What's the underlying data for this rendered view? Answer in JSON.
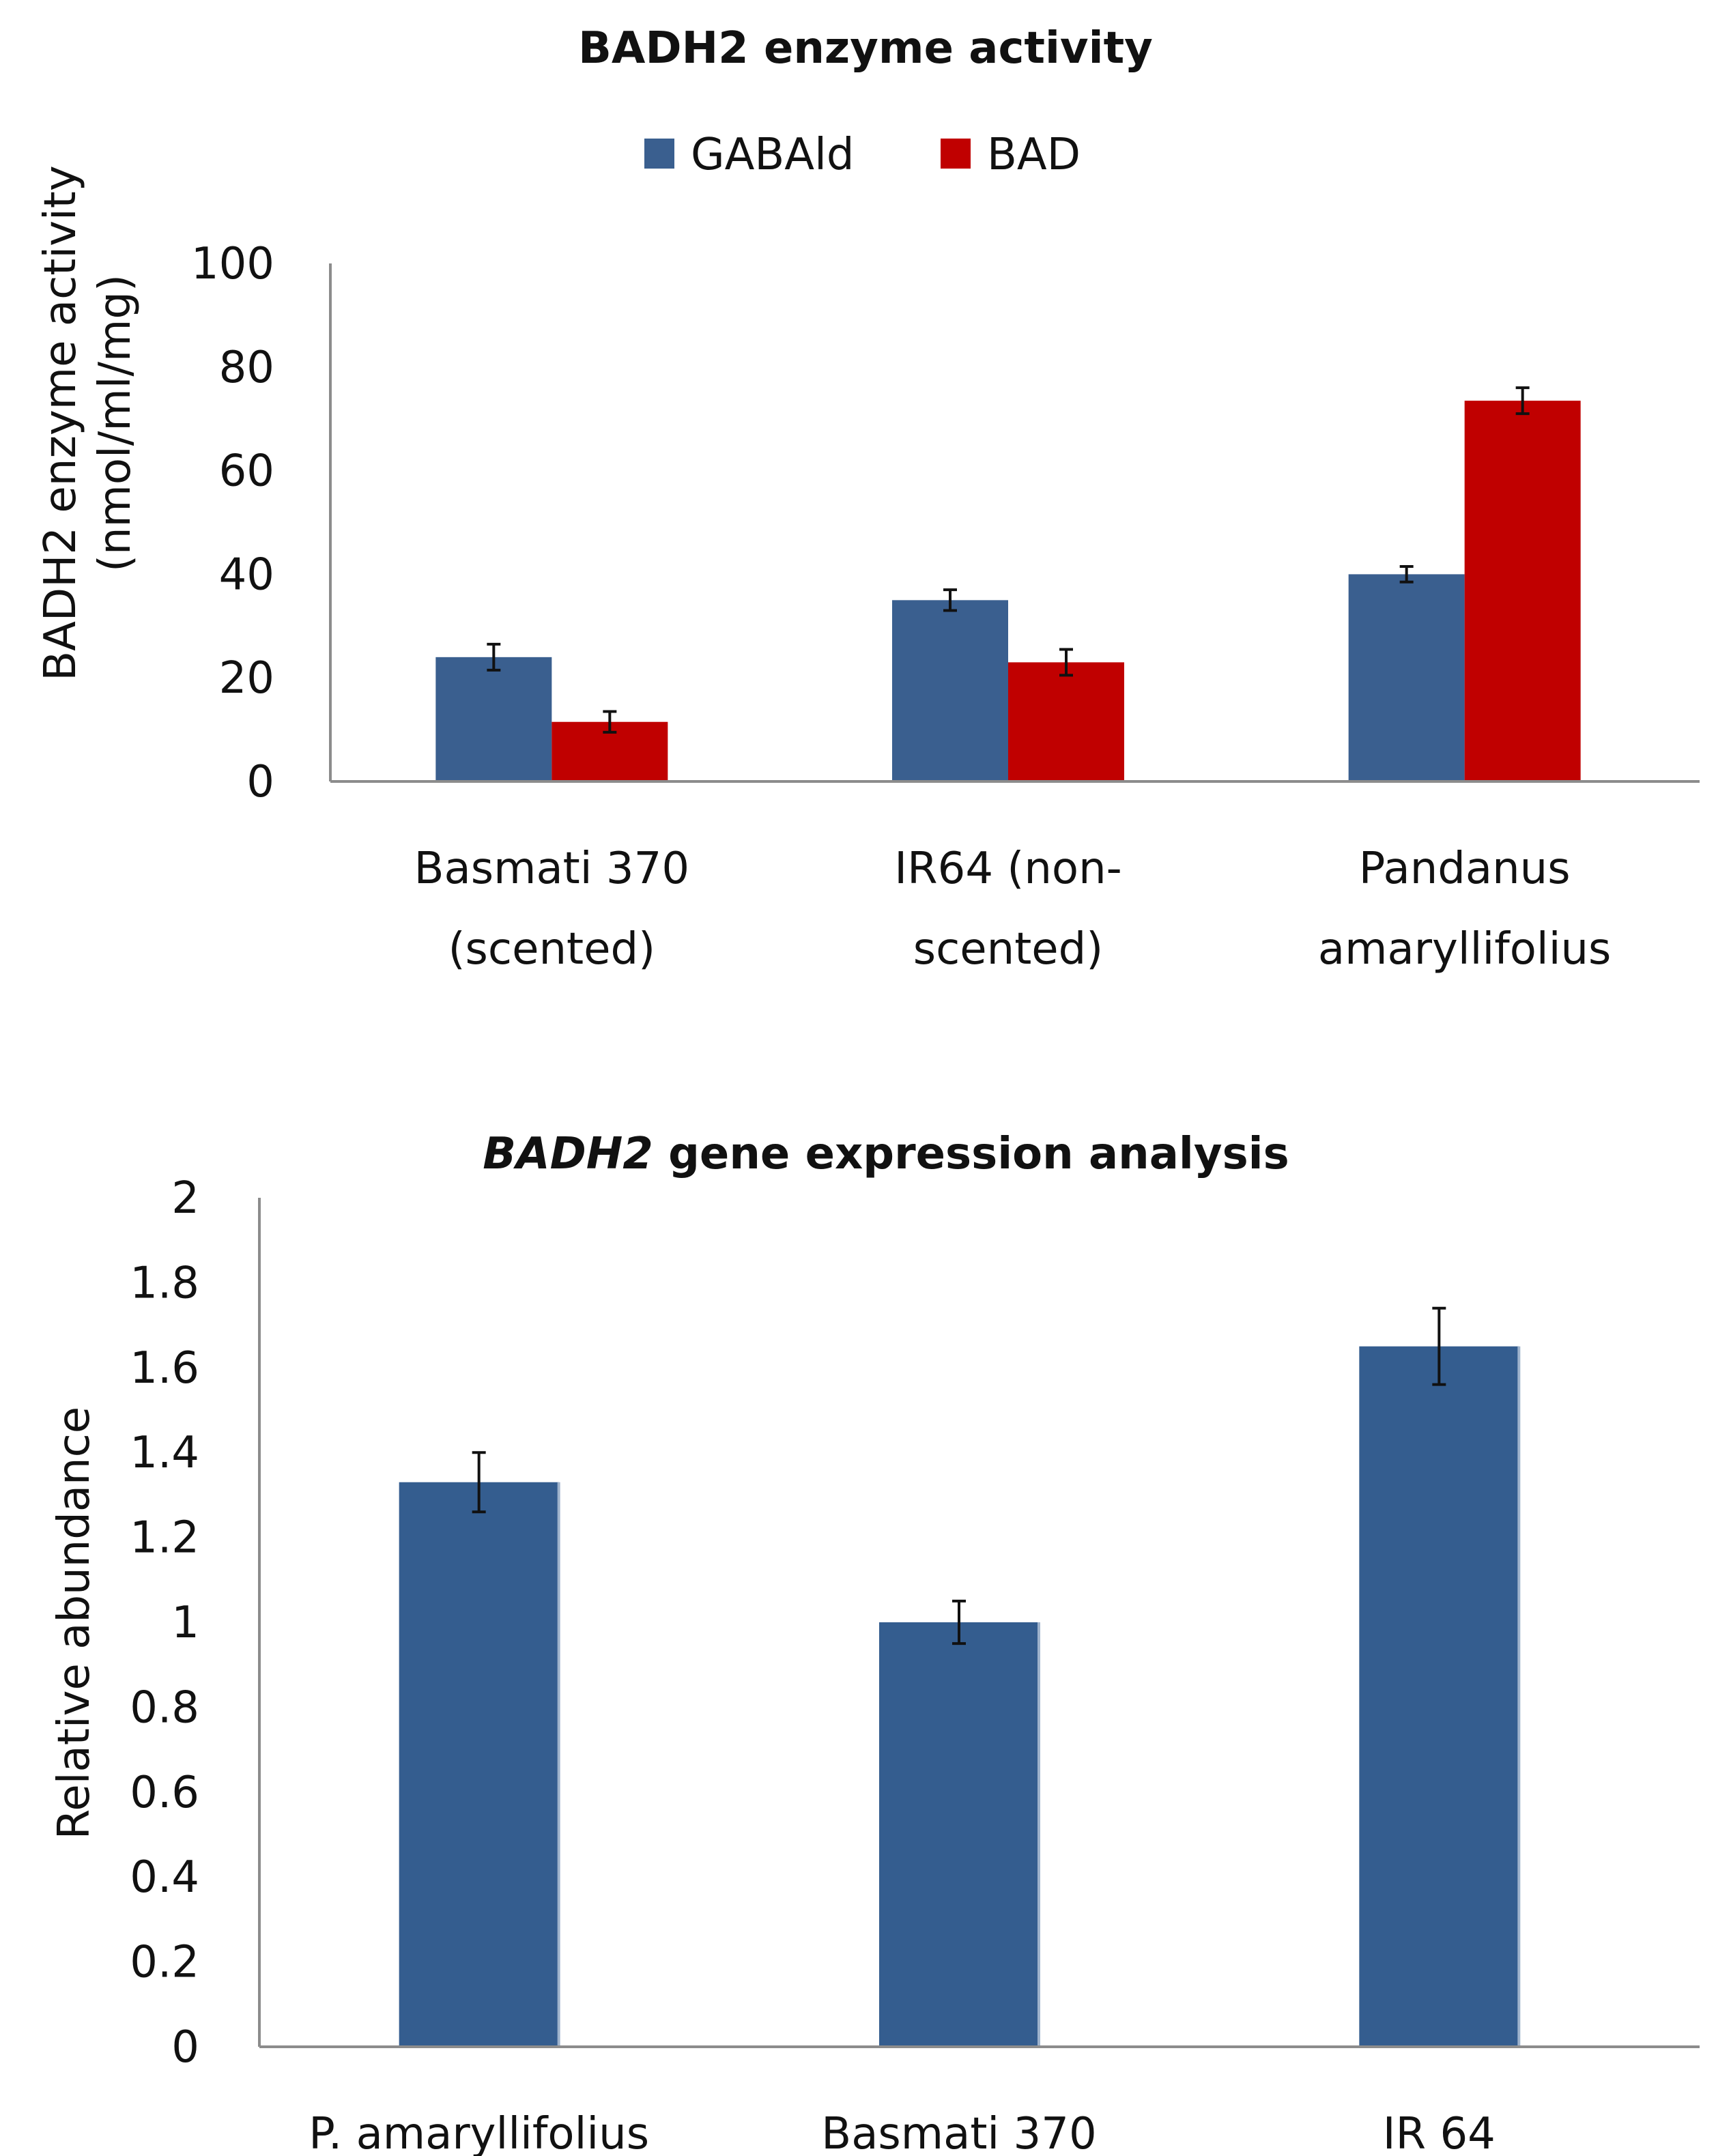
{
  "chart_data": [
    {
      "type": "bar",
      "title": "BADH2 enzyme activity",
      "ylabel_lines": [
        "BADH2 enzyme activity",
        "(nmol/ml/mg)"
      ],
      "xlabel": "",
      "ylim": [
        0,
        100
      ],
      "yticks": [
        "0",
        "20",
        "40",
        "60",
        "80",
        "100"
      ],
      "ytick_values": [
        0,
        20,
        40,
        60,
        80,
        100
      ],
      "categories": [
        [
          "Basmati 370",
          "(scented)"
        ],
        [
          "IR64 (non-",
          "scented)"
        ],
        [
          "Pandanus",
          "amaryllifolius"
        ]
      ],
      "series": [
        {
          "name": "GABAld",
          "values": [
            24,
            35,
            40
          ],
          "errors": [
            2.5,
            2,
            1.5
          ]
        },
        {
          "name": "BAD",
          "values": [
            11.5,
            23,
            73.5
          ],
          "errors": [
            2,
            2.5,
            2.5
          ]
        }
      ],
      "legend": [
        "GABAld",
        "BAD"
      ],
      "legend_position": "top-center",
      "grid": false
    },
    {
      "type": "bar",
      "title_italic": "BADH2",
      "title_rest": " gene expression analysis",
      "ylabel": "Relative abundance",
      "xlabel": "",
      "ylim": [
        0,
        2
      ],
      "yticks": [
        "0",
        "0.2",
        "0.4",
        "0.6",
        "0.8",
        "1",
        "1.2",
        "1.4",
        "1.6",
        "1.8",
        "2"
      ],
      "ytick_values": [
        0,
        0.2,
        0.4,
        0.6,
        0.8,
        1,
        1.2,
        1.4,
        1.6,
        1.8,
        2
      ],
      "categories": [
        "P. amaryllifolius",
        "Basmati 370",
        "IR 64"
      ],
      "values": [
        1.33,
        1.0,
        1.65
      ],
      "errors": [
        0.07,
        0.05,
        0.09
      ],
      "grid": false
    }
  ],
  "colors": {
    "gabald": "#3A5F8F",
    "bad": "#C00000",
    "expression": "#345D8F",
    "axis": "#8C8C8C",
    "error": "#111111"
  }
}
